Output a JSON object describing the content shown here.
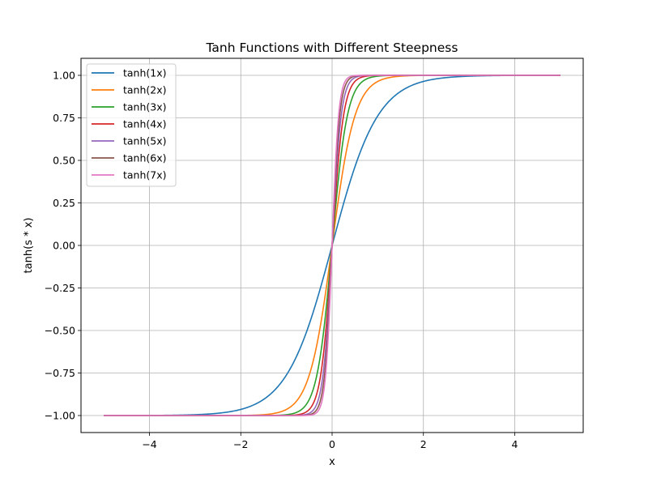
{
  "chart_data": {
    "type": "line",
    "title": "Tanh Functions with Different Steepness",
    "xlabel": "x",
    "ylabel": "tanh(s * x)",
    "xlim": [
      -5.5,
      5.5
    ],
    "ylim": [
      -1.1,
      1.1
    ],
    "x_range": [
      -5,
      5
    ],
    "x_ticks": [
      -4,
      -2,
      0,
      2,
      4
    ],
    "x_tick_labels": [
      "−4",
      "−2",
      "0",
      "2",
      "4"
    ],
    "y_ticks": [
      -1.0,
      -0.75,
      -0.5,
      -0.25,
      0.0,
      0.25,
      0.5,
      0.75,
      1.0
    ],
    "y_tick_labels": [
      "−1.00",
      "−0.75",
      "−0.50",
      "−0.25",
      "0.00",
      "0.25",
      "0.50",
      "0.75",
      "1.00"
    ],
    "grid": true,
    "legend_position": "top-left",
    "series": [
      {
        "name": "tanh(1x)",
        "steepness": 1,
        "color": "#1f77b4"
      },
      {
        "name": "tanh(2x)",
        "steepness": 2,
        "color": "#ff7f0e"
      },
      {
        "name": "tanh(3x)",
        "steepness": 3,
        "color": "#2ca02c"
      },
      {
        "name": "tanh(4x)",
        "steepness": 4,
        "color": "#d62728"
      },
      {
        "name": "tanh(5x)",
        "steepness": 5,
        "color": "#9467bd"
      },
      {
        "name": "tanh(6x)",
        "steepness": 6,
        "color": "#8c564b"
      },
      {
        "name": "tanh(7x)",
        "steepness": 7,
        "color": "#e377c2"
      }
    ]
  }
}
